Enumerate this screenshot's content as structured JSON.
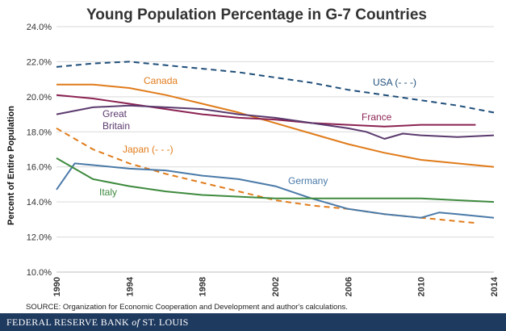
{
  "chart_data": {
    "type": "line",
    "title": "Young Population Percentage in G-7 Countries",
    "ylabel": "Percent of Entire Population",
    "xlabel": "",
    "xlim": [
      1990,
      2014
    ],
    "ylim": [
      10,
      24
    ],
    "x_ticks": [
      "1990",
      "1994",
      "1998",
      "2002",
      "2006",
      "2010",
      "2014"
    ],
    "y_ticks": [
      "10.0%",
      "12.0%",
      "14.0%",
      "16.0%",
      "18.0%",
      "20.0%",
      "22.0%",
      "24.0%"
    ],
    "grid": "horizontal",
    "series": [
      {
        "name": "USA (- - -)",
        "color": "#1f4e79",
        "dashed": true,
        "x": [
          1990,
          1992,
          1994,
          1996,
          1998,
          2000,
          2002,
          2004,
          2006,
          2008,
          2010,
          2012,
          2014
        ],
        "y": [
          21.7,
          21.9,
          22.0,
          21.8,
          21.6,
          21.4,
          21.1,
          20.8,
          20.4,
          20.1,
          19.8,
          19.5,
          19.1
        ]
      },
      {
        "name": "Canada",
        "color": "#e07b1a",
        "dashed": false,
        "x": [
          1990,
          1992,
          1994,
          1996,
          1998,
          2000,
          2002,
          2004,
          2006,
          2008,
          2010,
          2012,
          2014
        ],
        "y": [
          20.7,
          20.7,
          20.5,
          20.1,
          19.6,
          19.1,
          18.5,
          17.9,
          17.3,
          16.8,
          16.4,
          16.2,
          16.0
        ]
      },
      {
        "name": "France",
        "color": "#8b2252",
        "dashed": false,
        "x": [
          1990,
          1992,
          1994,
          1996,
          1998,
          2000,
          2002,
          2004,
          2006,
          2008,
          2010,
          2012,
          2013
        ],
        "y": [
          20.1,
          19.9,
          19.6,
          19.3,
          19.0,
          18.8,
          18.7,
          18.5,
          18.4,
          18.3,
          18.4,
          18.4,
          18.4
        ]
      },
      {
        "name": "Great Britain",
        "color": "#5b3a6e",
        "dashed": false,
        "x": [
          1990,
          1992,
          1994,
          1996,
          1998,
          2000,
          2002,
          2004,
          2006,
          2007,
          2008,
          2009,
          2010,
          2012,
          2014
        ],
        "y": [
          19.0,
          19.4,
          19.5,
          19.4,
          19.3,
          19.0,
          18.8,
          18.5,
          18.2,
          18.0,
          17.6,
          17.9,
          17.8,
          17.7,
          17.8
        ]
      },
      {
        "name": "Japan (- - -)",
        "color": "#e07b1a",
        "dashed": true,
        "x": [
          1990,
          1992,
          1994,
          1996,
          1998,
          2000,
          2002,
          2004,
          2006,
          2008,
          2010,
          2013
        ],
        "y": [
          18.2,
          17.0,
          16.2,
          15.6,
          15.1,
          14.6,
          14.1,
          13.8,
          13.6,
          13.3,
          13.1,
          12.8
        ]
      },
      {
        "name": "Germany",
        "color": "#4a7aa8",
        "dashed": false,
        "x": [
          1990,
          1991,
          1992,
          1994,
          1996,
          1998,
          2000,
          2002,
          2004,
          2006,
          2008,
          2010,
          2011,
          2012,
          2014
        ],
        "y": [
          14.7,
          16.2,
          16.1,
          15.9,
          15.8,
          15.5,
          15.3,
          14.9,
          14.2,
          13.6,
          13.3,
          13.1,
          13.4,
          13.3,
          13.1
        ]
      },
      {
        "name": "Italy",
        "color": "#3e8a3e",
        "dashed": false,
        "x": [
          1990,
          1992,
          1994,
          1996,
          1998,
          2000,
          2002,
          2004,
          2006,
          2008,
          2010,
          2012,
          2014
        ],
        "y": [
          16.5,
          15.3,
          14.9,
          14.6,
          14.4,
          14.3,
          14.2,
          14.2,
          14.2,
          14.2,
          14.2,
          14.1,
          14.0
        ]
      }
    ],
    "source": "SOURCE: Organization for Economic Cooperation and Development and author's calculations.",
    "footer": "FEDERAL RESERVE BANK of ST. LOUIS",
    "footer_color": "#1f3a5f"
  }
}
